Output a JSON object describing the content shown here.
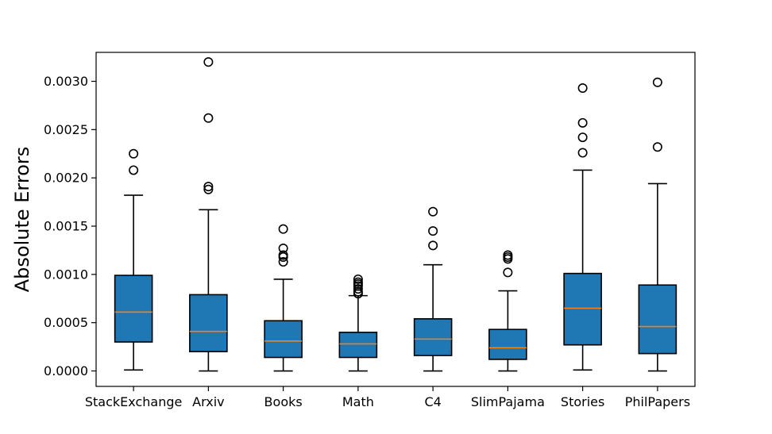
{
  "chart_data": {
    "type": "box",
    "title": "",
    "xlabel": "",
    "ylabel": "Absolute Errors",
    "ylim": [
      -0.00016,
      0.0033
    ],
    "yticks": [
      "0.0000",
      "0.0005",
      "0.0010",
      "0.0015",
      "0.0020",
      "0.0025",
      "0.0030"
    ],
    "grid": false,
    "legend": "none",
    "colors": {
      "box_fill": "#1f77b4",
      "median": "#ff7f0e",
      "edge": "#000000"
    },
    "categories": [
      "StackExchange",
      "Arxiv",
      "Books",
      "Math",
      "C4",
      "SlimPajama",
      "Stories",
      "PhilPapers"
    ],
    "boxes": [
      {
        "category": "StackExchange",
        "whisker_low": 1e-05,
        "q1": 0.0003,
        "median": 0.00061,
        "q3": 0.00099,
        "whisker_high": 0.00182,
        "outliers": [
          0.00208,
          0.00225
        ]
      },
      {
        "category": "Arxiv",
        "whisker_low": 0.0,
        "q1": 0.0002,
        "median": 0.00041,
        "q3": 0.00079,
        "whisker_high": 0.00167,
        "outliers": [
          0.00188,
          0.00191,
          0.00262,
          0.0032
        ]
      },
      {
        "category": "Books",
        "whisker_low": 0.0,
        "q1": 0.00014,
        "median": 0.00031,
        "q3": 0.00052,
        "whisker_high": 0.00095,
        "outliers": [
          0.00113,
          0.00118,
          0.0012,
          0.00127,
          0.00147
        ]
      },
      {
        "category": "Math",
        "whisker_low": 0.0,
        "q1": 0.00014,
        "median": 0.00028,
        "q3": 0.0004,
        "whisker_high": 0.00078,
        "outliers": [
          0.0008,
          0.00082,
          0.00085,
          0.00088,
          0.0009,
          0.00092,
          0.00095
        ]
      },
      {
        "category": "C4",
        "whisker_low": 0.0,
        "q1": 0.00016,
        "median": 0.00033,
        "q3": 0.00054,
        "whisker_high": 0.0011,
        "outliers": [
          0.0013,
          0.00145,
          0.00165
        ]
      },
      {
        "category": "SlimPajama",
        "whisker_low": 0.0,
        "q1": 0.00012,
        "median": 0.00024,
        "q3": 0.00043,
        "whisker_high": 0.00083,
        "outliers": [
          0.00102,
          0.00116,
          0.00118,
          0.0012
        ]
      },
      {
        "category": "Stories",
        "whisker_low": 1e-05,
        "q1": 0.00027,
        "median": 0.00065,
        "q3": 0.00101,
        "whisker_high": 0.00208,
        "outliers": [
          0.00226,
          0.00242,
          0.00257,
          0.00293
        ]
      },
      {
        "category": "PhilPapers",
        "whisker_low": 0.0,
        "q1": 0.00018,
        "median": 0.00046,
        "q3": 0.00089,
        "whisker_high": 0.00194,
        "outliers": [
          0.00232,
          0.00299
        ]
      }
    ]
  }
}
